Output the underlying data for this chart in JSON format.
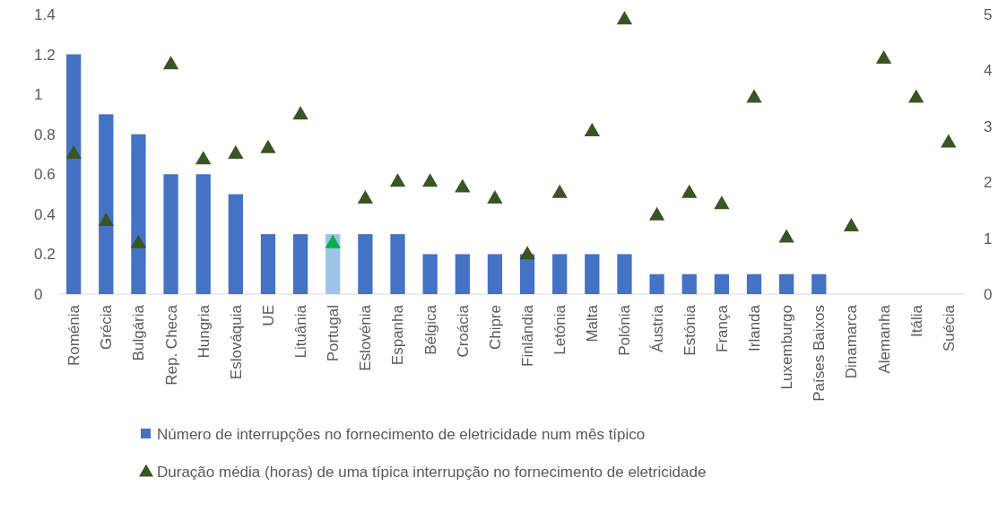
{
  "chart_data": {
    "type": "bar",
    "categories": [
      "Roménia",
      "Grécia",
      "Bulgária",
      "Rep. Checa",
      "Hungria",
      "Eslováquia",
      "UE",
      "Lituânia",
      "Portugal",
      "Eslovénia",
      "Espanha",
      "Bélgica",
      "Croácia",
      "Chipre",
      "Finlândia",
      "Letónia",
      "Malta",
      "Polónia",
      "Áustria",
      "Estónia",
      "França",
      "Irlanda",
      "Luxemburgo",
      "Países Baixos",
      "Dinamarca",
      "Alemanha",
      "Itália",
      "Suécia"
    ],
    "series": [
      {
        "name": "Número de interrupções no fornecimento de eletricidade num mês típico",
        "color": "#4472c4",
        "colors": [
          "#4472c4",
          "#4472c4",
          "#4472c4",
          "#4472c4",
          "#4472c4",
          "#4472c4",
          "#4472c4",
          "#4472c4",
          "#9dc3e6",
          "#4472c4",
          "#4472c4",
          "#4472c4",
          "#4472c4",
          "#4472c4",
          "#4472c4",
          "#4472c4",
          "#4472c4",
          "#4472c4",
          "#4472c4",
          "#4472c4",
          "#4472c4",
          "#4472c4",
          "#4472c4",
          "#4472c4",
          null,
          null,
          null,
          null
        ],
        "values": [
          1.2,
          0.9,
          0.8,
          0.6,
          0.6,
          0.5,
          0.3,
          0.3,
          0.3,
          0.3,
          0.3,
          0.2,
          0.2,
          0.2,
          0.2,
          0.2,
          0.2,
          0.2,
          0.1,
          0.1,
          0.1,
          0.1,
          0.1,
          0.1,
          null,
          null,
          null,
          null
        ]
      },
      {
        "type": "scatter",
        "axis": "y2",
        "marker": "triangle",
        "name": "Duração média (horas) de uma típica interrupção no fornecimento de eletricidade",
        "color": "#375623",
        "colors": [
          "#375623",
          "#375623",
          "#375623",
          "#375623",
          "#375623",
          "#375623",
          "#375623",
          "#375623",
          "#00b050",
          "#375623",
          "#375623",
          "#375623",
          "#375623",
          "#375623",
          "#375623",
          "#375623",
          "#375623",
          "#375623",
          "#375623",
          "#375623",
          "#375623",
          "#375623",
          "#375623",
          null,
          "#375623",
          "#375623",
          "#375623",
          "#375623"
        ],
        "values": [
          2.5,
          1.3,
          0.9,
          4.1,
          2.4,
          2.5,
          2.6,
          3.2,
          0.9,
          1.7,
          2.0,
          2.0,
          1.9,
          1.7,
          0.7,
          1.8,
          2.9,
          4.9,
          1.4,
          1.8,
          1.6,
          3.5,
          1.0,
          null,
          1.2,
          4.2,
          3.5,
          2.7
        ]
      }
    ],
    "ylim": [
      0,
      1.4
    ],
    "yticks": [
      0,
      0.2,
      0.4,
      0.6,
      0.8,
      1,
      1.2,
      1.4
    ],
    "y2lim": [
      0,
      5
    ],
    "y2ticks": [
      0,
      1,
      2,
      3,
      4,
      5
    ],
    "legend": "bottom",
    "grid": false
  }
}
